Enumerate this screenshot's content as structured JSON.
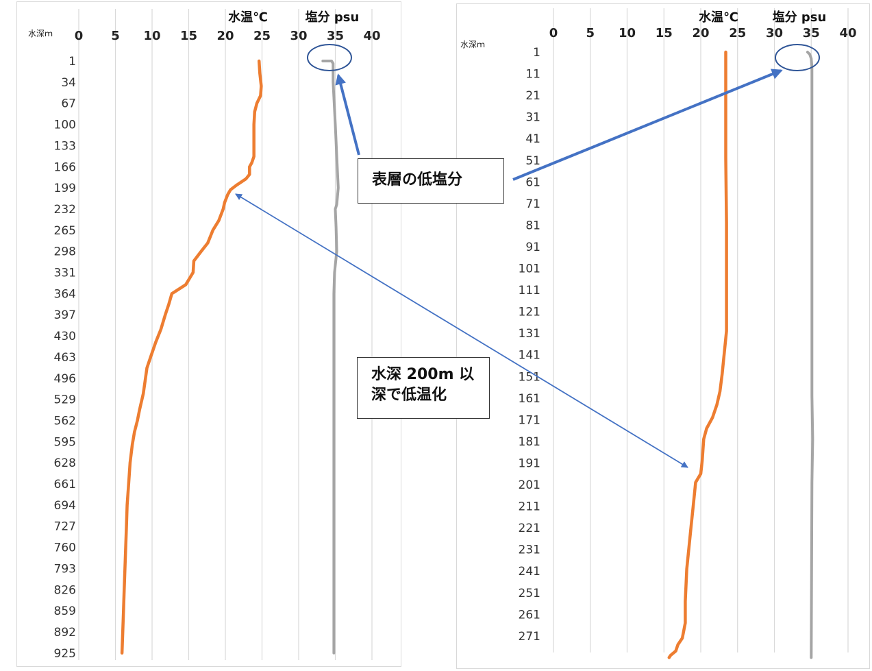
{
  "chart_data": [
    {
      "type": "line",
      "title": "",
      "depth_axis_label": "水深ｍ",
      "temp_axis_label": "水温℃",
      "sal_axis_label": "塩分 psu",
      "x_ticks": [
        0,
        5,
        10,
        15,
        20,
        25,
        30,
        35,
        40
      ],
      "xlim": [
        0,
        40
      ],
      "depth_labels": [
        "1",
        "34",
        "67",
        "100",
        "133",
        "166",
        "199",
        "232",
        "265",
        "298",
        "331",
        "364",
        "397",
        "430",
        "463",
        "496",
        "529",
        "562",
        "595",
        "628",
        "661",
        "694",
        "727",
        "760",
        "793",
        "826",
        "859",
        "892",
        "925"
      ],
      "ylim": [
        1,
        925
      ],
      "grid": true,
      "series": [
        {
          "key": "temperature",
          "color": "#ed7d31",
          "points": [
            [
              24.6,
              1
            ],
            [
              24.7,
              20
            ],
            [
              24.9,
              40
            ],
            [
              24.8,
              55
            ],
            [
              24.3,
              67
            ],
            [
              24.0,
              80
            ],
            [
              23.9,
              100
            ],
            [
              23.9,
              150
            ],
            [
              23.6,
              160
            ],
            [
              23.3,
              166
            ],
            [
              23.3,
              178
            ],
            [
              22.8,
              185
            ],
            [
              21.5,
              195
            ],
            [
              20.7,
              202
            ],
            [
              20.3,
              210
            ],
            [
              19.9,
              222
            ],
            [
              19.7,
              232
            ],
            [
              19.1,
              250
            ],
            [
              18.3,
              265
            ],
            [
              17.6,
              285
            ],
            [
              16.7,
              298
            ],
            [
              15.7,
              313
            ],
            [
              15.6,
              331
            ],
            [
              14.6,
              350
            ],
            [
              12.7,
              364
            ],
            [
              12.3,
              380
            ],
            [
              11.8,
              397
            ],
            [
              11.2,
              420
            ],
            [
              10.5,
              440
            ],
            [
              9.8,
              463
            ],
            [
              9.3,
              480
            ],
            [
              9.1,
              496
            ],
            [
              8.8,
              520
            ],
            [
              8.3,
              545
            ],
            [
              8.0,
              562
            ],
            [
              7.6,
              580
            ],
            [
              7.3,
              600
            ],
            [
              7.0,
              628
            ],
            [
              6.8,
              661
            ],
            [
              6.6,
              694
            ],
            [
              6.5,
              727
            ],
            [
              6.4,
              760
            ],
            [
              6.3,
              793
            ],
            [
              6.2,
              826
            ],
            [
              6.1,
              859
            ],
            [
              6.0,
              892
            ],
            [
              5.9,
              925
            ]
          ]
        },
        {
          "key": "salinity",
          "color": "#a5a5a5",
          "points": [
            [
              33.3,
              1
            ],
            [
              34.5,
              1
            ],
            [
              34.7,
              5
            ],
            [
              34.7,
              34
            ],
            [
              35.0,
              100
            ],
            [
              35.2,
              150
            ],
            [
              35.4,
              199
            ],
            [
              35.2,
              225
            ],
            [
              35.0,
              232
            ],
            [
              35.1,
              260
            ],
            [
              35.2,
              298
            ],
            [
              34.9,
              331
            ],
            [
              34.8,
              364
            ],
            [
              34.8,
              500
            ],
            [
              34.8,
              700
            ],
            [
              34.8,
              925
            ]
          ]
        }
      ]
    },
    {
      "type": "line",
      "title": "",
      "depth_axis_label": "水深ｍ",
      "temp_axis_label": "水温℃",
      "sal_axis_label": "塩分 psu",
      "x_ticks": [
        0,
        5,
        10,
        15,
        20,
        25,
        30,
        35,
        40
      ],
      "xlim": [
        0,
        40
      ],
      "depth_labels": [
        "1",
        "11",
        "21",
        "31",
        "41",
        "51",
        "61",
        "71",
        "81",
        "91",
        "101",
        "111",
        "121",
        "131",
        "141",
        "151",
        "161",
        "171",
        "181",
        "191",
        "201",
        "211",
        "221",
        "231",
        "241",
        "251",
        "261",
        "271"
      ],
      "ylim": [
        1,
        281
      ],
      "grid": true,
      "series": [
        {
          "key": "temperature",
          "color": "#ed7d31",
          "points": [
            [
              23.4,
              1
            ],
            [
              23.4,
              50
            ],
            [
              23.5,
              80
            ],
            [
              23.5,
              130
            ],
            [
              23.2,
              140
            ],
            [
              22.9,
              150
            ],
            [
              22.6,
              158
            ],
            [
              22.2,
              164
            ],
            [
              21.6,
              170
            ],
            [
              20.8,
              175
            ],
            [
              20.4,
              180
            ],
            [
              20.2,
              190
            ],
            [
              20.0,
              196
            ],
            [
              19.3,
              200
            ],
            [
              19.0,
              210
            ],
            [
              18.7,
              220
            ],
            [
              18.4,
              230
            ],
            [
              18.1,
              240
            ],
            [
              17.9,
              255
            ],
            [
              17.9,
              265
            ],
            [
              17.5,
              272
            ],
            [
              16.9,
              275
            ],
            [
              16.6,
              278
            ],
            [
              15.9,
              280
            ],
            [
              15.7,
              281
            ]
          ]
        },
        {
          "key": "salinity",
          "color": "#a5a5a5",
          "points": [
            [
              34.5,
              1
            ],
            [
              34.8,
              2
            ],
            [
              35.0,
              4
            ],
            [
              35.1,
              8
            ],
            [
              35.1,
              80
            ],
            [
              35.1,
              160
            ],
            [
              35.2,
              180
            ],
            [
              35.1,
              200
            ],
            [
              35.0,
              281
            ]
          ]
        }
      ]
    }
  ],
  "annotations": {
    "surface_low_salinity": "表層の低塩分",
    "deep_cooling_line1": "水深 200m 以",
    "deep_cooling_line2": "深で低温化"
  },
  "colors": {
    "annotation_arrow": "#4472c4",
    "annotation_circle": "#2f5597"
  }
}
